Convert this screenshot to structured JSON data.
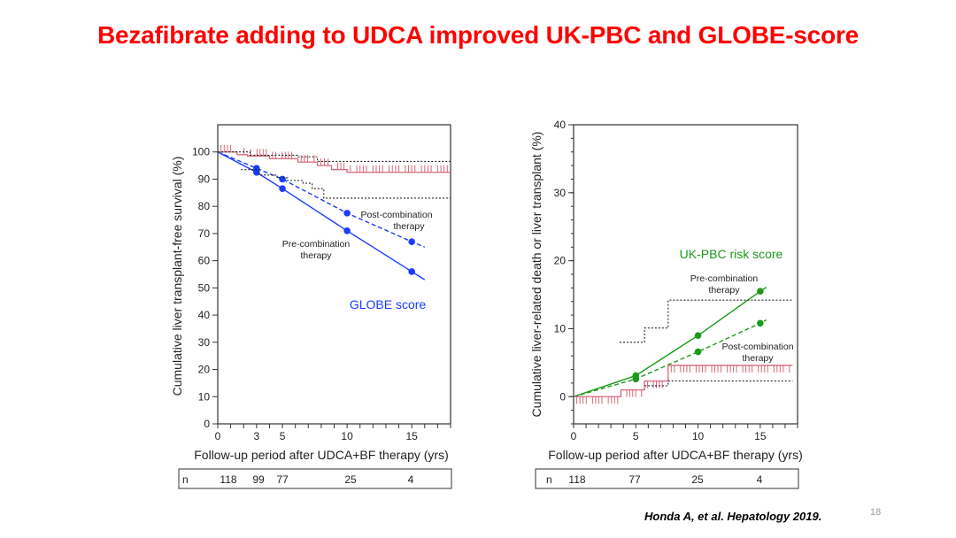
{
  "slide": {
    "title": "Bezafibrate adding to UDCA improved UK-PBC and GLOBE-score",
    "citation": "Honda A, et al. Hepatology 2019.",
    "page_number": "18"
  },
  "colors": {
    "title": "#ff0000",
    "globe": "#1a3cff",
    "ukpbc": "#1a9a1a",
    "km": "#d9677a",
    "reference": "#222222"
  },
  "chart_data": [
    {
      "type": "line",
      "title": "GLOBE score",
      "xlabel": "Follow-up period after UDCA+BF therapy (yrs)",
      "ylabel": "Cumulative liver transplant-free survival (%)",
      "xlim": [
        0,
        18
      ],
      "ylim": [
        0,
        110
      ],
      "x_ticks": [
        0,
        3,
        5,
        10,
        15
      ],
      "y_ticks": [
        0,
        10,
        20,
        30,
        40,
        50,
        60,
        70,
        80,
        90,
        100
      ],
      "series": [
        {
          "name": "Pre-combination therapy",
          "style": "solid",
          "color": "#1a3cff",
          "x": [
            0,
            3,
            5,
            10,
            15
          ],
          "y": [
            100,
            92.5,
            86.5,
            71,
            56
          ],
          "markers_x": [
            3,
            5,
            10,
            15
          ],
          "line_end": [
            16,
            53
          ]
        },
        {
          "name": "Post-combination therapy",
          "style": "dashed",
          "color": "#1a3cff",
          "x": [
            0,
            3,
            5,
            10,
            15
          ],
          "y": [
            100,
            94,
            90,
            77.5,
            67
          ],
          "markers_x": [
            3,
            5,
            10,
            15
          ],
          "line_end": [
            16,
            65
          ]
        },
        {
          "name": "Kaplan-Meier observed",
          "style": "step",
          "color": "#d9677a",
          "x": [
            0,
            1.5,
            2.3,
            4,
            6.2,
            7.7,
            8.8,
            10,
            18
          ],
          "y": [
            100,
            99,
            98.5,
            97.5,
            96.3,
            95,
            93.5,
            92.5,
            92.5
          ]
        },
        {
          "name": "KM upper bound",
          "style": "dotted-step",
          "color": "#222222",
          "x": [
            0,
            2.5,
            6.2,
            7.7,
            18
          ],
          "y": [
            100,
            98.8,
            98.2,
            96.5,
            96.5
          ]
        },
        {
          "name": "KM lower bound",
          "style": "dotted-step",
          "color": "#222222",
          "x": [
            1.8,
            3.2,
            4.6,
            5.4,
            6.6,
            7.3,
            8.2,
            18
          ],
          "y": [
            93.5,
            91.5,
            90.5,
            89.5,
            88.5,
            86.5,
            83,
            83
          ]
        }
      ],
      "annotations": [
        {
          "text": "Post-combination",
          "text2": "therapy"
        },
        {
          "text": "Pre-combination",
          "text2": "therapy"
        },
        {
          "text": "GLOBE score"
        }
      ],
      "risk_table": {
        "label": "n",
        "x": [
          0,
          3,
          5,
          10,
          15
        ],
        "values": [
          "118",
          "99",
          "77",
          "25",
          "4"
        ]
      }
    },
    {
      "type": "line",
      "title": "UK-PBC risk score",
      "xlabel": "Follow-up period after UDCA+BF therapy (yrs)",
      "ylabel": "Cumulative liver-related death or liver transplant (%)",
      "xlim": [
        0,
        18
      ],
      "ylim": [
        -4,
        40
      ],
      "x_ticks": [
        0,
        5,
        10,
        15
      ],
      "y_ticks": [
        0,
        10,
        20,
        30,
        40
      ],
      "series": [
        {
          "name": "Pre-combination therapy",
          "style": "solid",
          "color": "#1a9a1a",
          "x": [
            0,
            5,
            10,
            15
          ],
          "y": [
            0,
            3.1,
            9.0,
            15.5
          ],
          "markers_x": [
            5,
            10,
            15
          ],
          "line_end": [
            15.5,
            16.1
          ]
        },
        {
          "name": "Post-combination therapy",
          "style": "dashed",
          "color": "#1a9a1a",
          "x": [
            0,
            5,
            10,
            15
          ],
          "y": [
            0,
            2.6,
            6.6,
            10.8
          ],
          "markers_x": [
            5,
            10,
            15
          ],
          "line_end": [
            15.5,
            11.3
          ]
        },
        {
          "name": "Kaplan-Meier observed",
          "style": "step",
          "color": "#d9677a",
          "x": [
            0,
            3.8,
            5.7,
            7.6,
            17.6
          ],
          "y": [
            0,
            1.0,
            2.3,
            4.6,
            4.6
          ]
        },
        {
          "name": "KM upper bound",
          "style": "dotted-step",
          "color": "#222222",
          "x": [
            3.7,
            5.7,
            7.6,
            17.6
          ],
          "y": [
            8.0,
            10.1,
            14.2,
            14.2
          ]
        },
        {
          "name": "KM lower bound",
          "style": "dotted-step",
          "color": "#222222",
          "x": [
            5.7,
            7.6,
            17.6
          ],
          "y": [
            1.6,
            2.3,
            2.3
          ]
        }
      ],
      "annotations": [
        {
          "text": "UK-PBC risk score"
        },
        {
          "text": "Pre-combination",
          "text2": "therapy"
        },
        {
          "text": "Post-combination",
          "text2": "therapy"
        }
      ],
      "risk_table": {
        "label": "n",
        "x": [
          0,
          5,
          10,
          15
        ],
        "values": [
          "118",
          "77",
          "25",
          "4"
        ]
      }
    }
  ]
}
